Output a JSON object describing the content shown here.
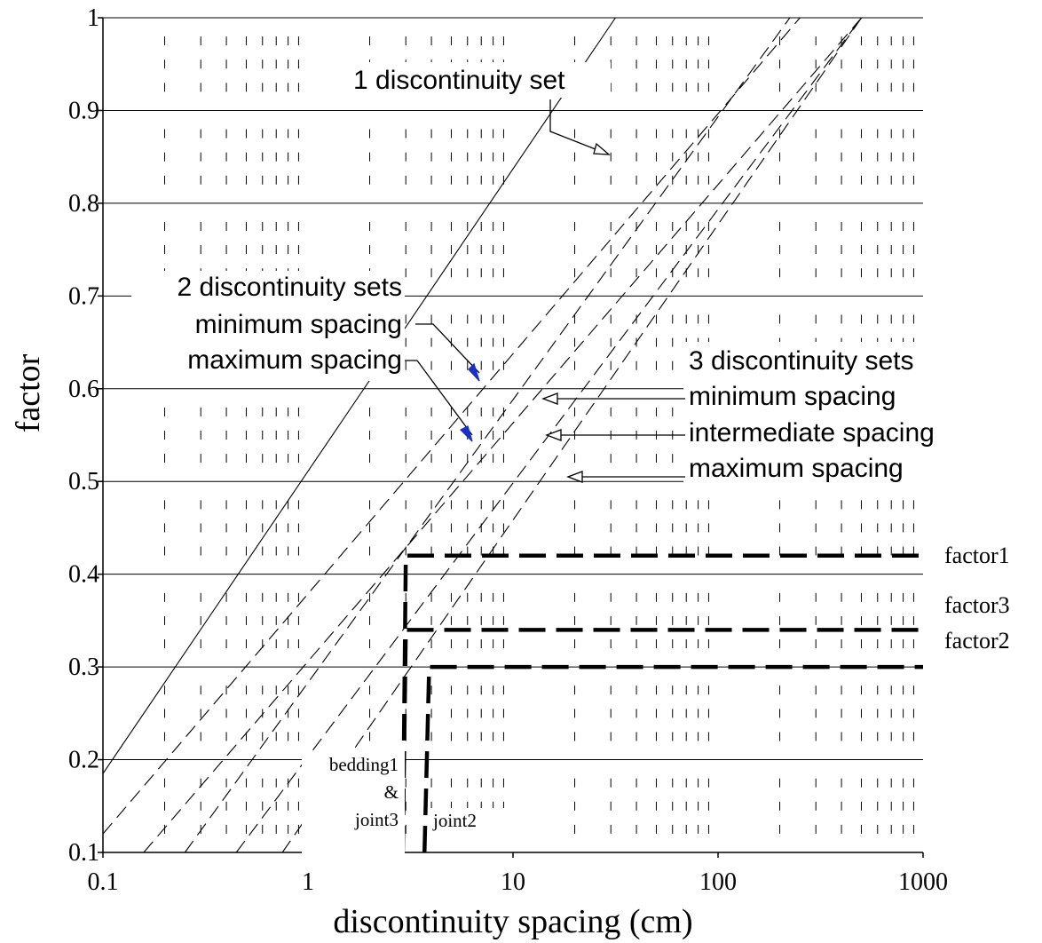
{
  "chart_data": {
    "type": "line",
    "xlabel": "discontinuity spacing (cm)",
    "ylabel": "factor",
    "x_scale": "log",
    "xlim": [
      0.1,
      1000
    ],
    "ylim": [
      0.1,
      1.0
    ],
    "x_ticks": [
      "0.1",
      "1",
      "10",
      "100",
      "1000"
    ],
    "y_ticks": [
      "0.1",
      "0.2",
      "0.3",
      "0.4",
      "0.5",
      "0.6",
      "0.7",
      "0.8",
      "0.9",
      "1"
    ],
    "grid": {
      "horizontal": true,
      "vertical_minor_dashes": true
    },
    "reference_lines": [
      {
        "group": "1 discontinuity set",
        "points": [
          [
            0.1,
            0.185
          ],
          [
            31.6,
            1.0
          ]
        ],
        "style": "solid"
      },
      {
        "group": "2 discontinuity sets minimum spacing",
        "points": [
          [
            0.1,
            0.12
          ],
          [
            251,
            1.0
          ]
        ],
        "style": "dashed"
      },
      {
        "group": "2 discontinuity sets maximum spacing",
        "points": [
          [
            0.158,
            0.1
          ],
          [
            501,
            1.0
          ]
        ],
        "style": "dashed"
      },
      {
        "group": "3 discontinuity sets minimum spacing",
        "points": [
          [
            0.251,
            0.1
          ],
          [
            224,
            1.0
          ]
        ],
        "style": "dashed"
      },
      {
        "group": "3 discontinuity sets intermediate spacing",
        "points": [
          [
            0.447,
            0.1
          ],
          [
            501,
            1.0
          ]
        ],
        "style": "dashed"
      },
      {
        "group": "3 discontinuity sets maximum spacing",
        "points": [
          [
            0.75,
            0.1
          ],
          [
            501,
            1.0
          ]
        ],
        "style": "dashed"
      }
    ],
    "series": [
      {
        "name": "factor1",
        "points": [
          [
            2.9,
            0.1
          ],
          [
            3.0,
            0.42
          ],
          [
            1000,
            0.42
          ]
        ]
      },
      {
        "name": "factor3",
        "points": [
          [
            2.9,
            0.1
          ],
          [
            3.0,
            0.34
          ],
          [
            8,
            0.34
          ],
          [
            1000,
            0.34
          ]
        ]
      },
      {
        "name": "factor2",
        "points": [
          [
            3.7,
            0.1
          ],
          [
            3.9,
            0.3
          ],
          [
            1000,
            0.3
          ]
        ]
      }
    ],
    "annotations": {
      "set1": "1 discontinuity set",
      "set2_title": "2 discontinuity sets",
      "set2_min": "minimum spacing",
      "set2_max": "maximum spacing",
      "set3_title": "3 discontinuity sets",
      "set3_min": "minimum spacing",
      "set3_int": "intermediate spacing",
      "set3_max": "maximum spacing",
      "bedding1": "bedding1",
      "amp": "&",
      "joint3": "joint3",
      "joint2": "joint2"
    }
  }
}
